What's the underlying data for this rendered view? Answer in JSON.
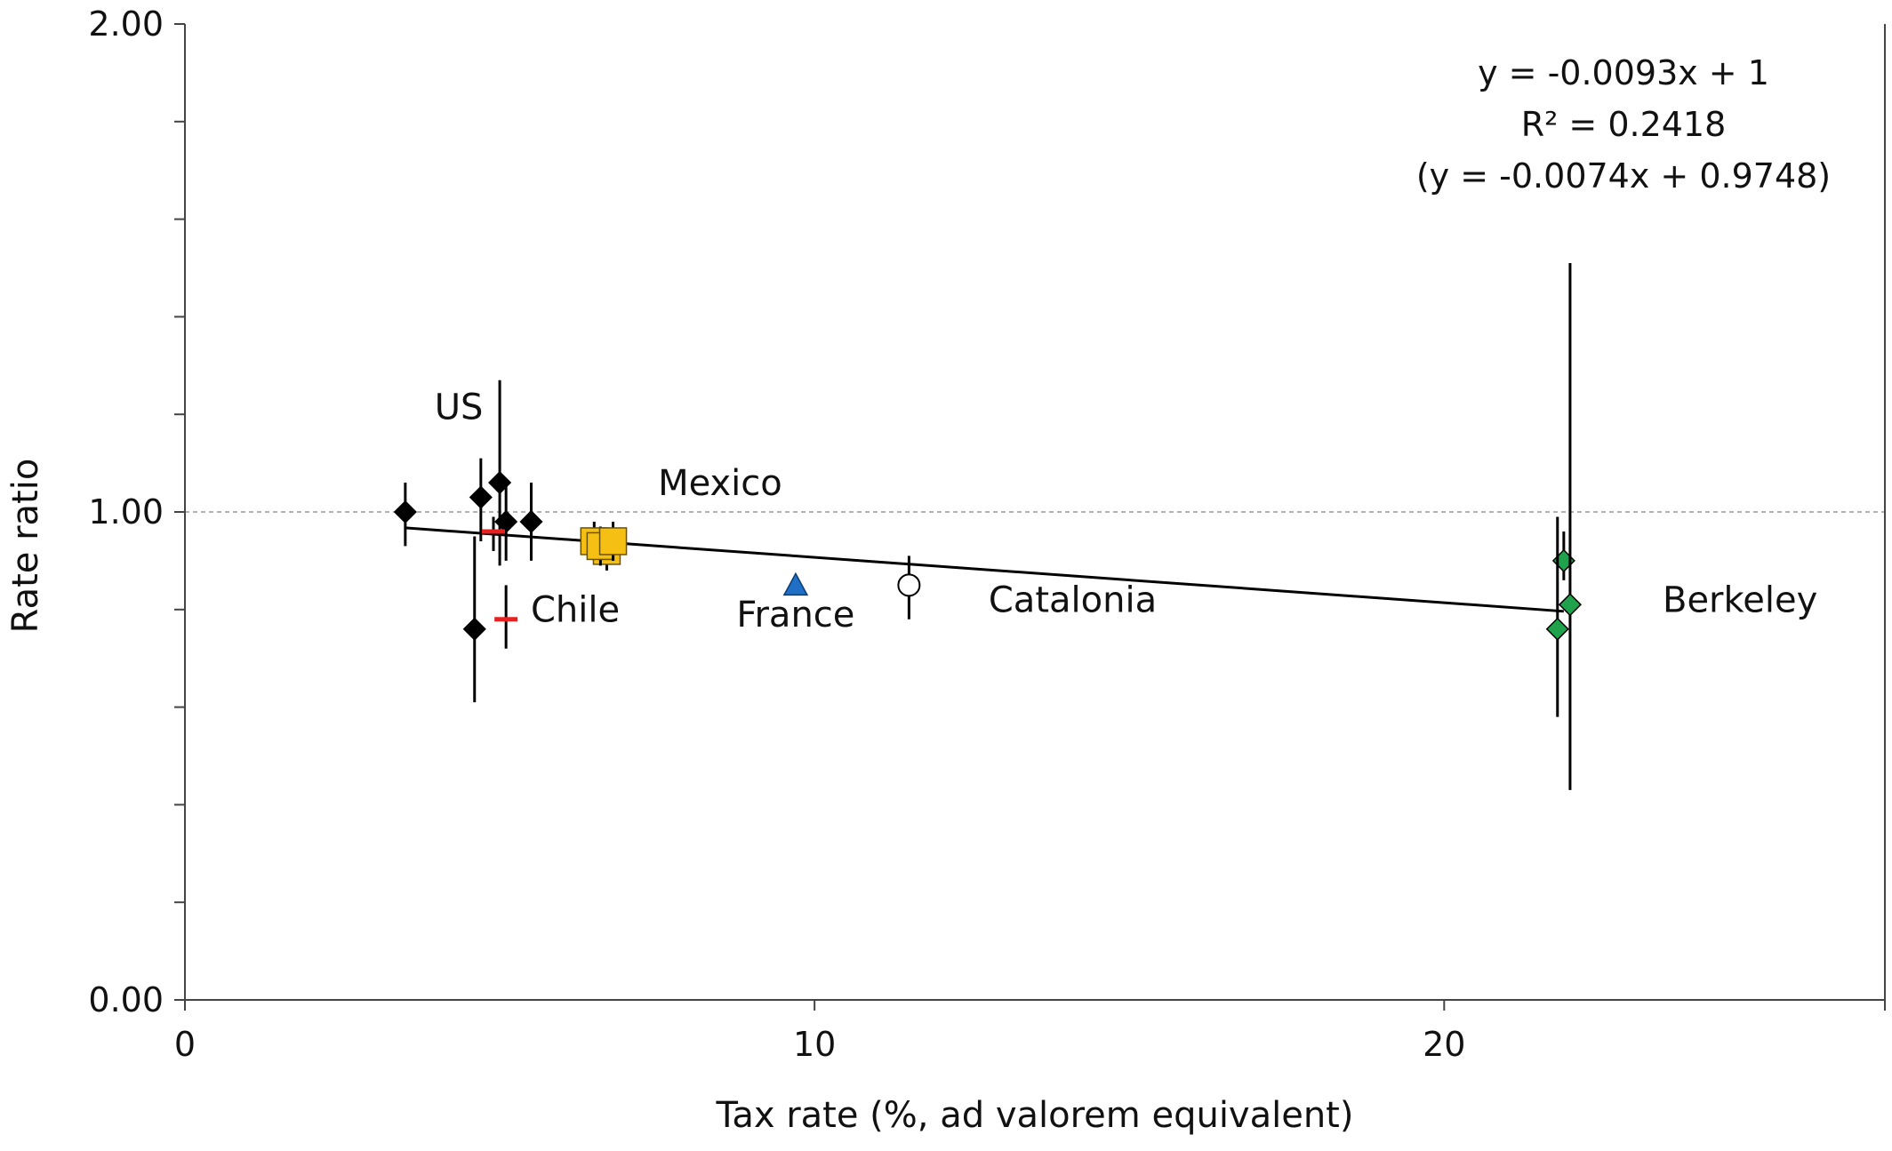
{
  "chart_data": {
    "type": "scatter",
    "xlabel": "Tax rate (%, ad valorem equivalent)",
    "ylabel": "Rate ratio",
    "xlim": [
      0,
      27
    ],
    "ylim": [
      0,
      2
    ],
    "x_ticks": [
      0,
      10,
      20
    ],
    "x_tick_labels": [
      "0",
      "10",
      "20"
    ],
    "y_ticks": [
      0,
      1,
      2
    ],
    "y_tick_labels": [
      "0.00",
      "1.00",
      "2.00"
    ],
    "y_minor_step": 0.2,
    "reference_line": {
      "y": 1.0,
      "style": "dashed",
      "color": "#999999"
    },
    "regression_line": {
      "slope": -0.0093,
      "intercept": 1.0,
      "x_from": 3.5,
      "x_to": 21.9
    },
    "equations": [
      "y = -0.0093x + 1",
      "R² = 0.2418",
      "(y = -0.0074x + 0.9748)"
    ],
    "series": [
      {
        "group": "US",
        "marker": "diamond",
        "color": "#000000",
        "points": [
          {
            "x": 3.5,
            "y": 1.0,
            "lo": 0.93,
            "hi": 1.06
          },
          {
            "x": 4.7,
            "y": 1.03,
            "lo": 0.94,
            "hi": 1.11
          },
          {
            "x": 5.0,
            "y": 1.06,
            "lo": 0.89,
            "hi": 1.27
          },
          {
            "x": 5.1,
            "y": 0.98,
            "lo": 0.9,
            "hi": 1.06
          },
          {
            "x": 5.5,
            "y": 0.98,
            "lo": 0.9,
            "hi": 1.06
          },
          {
            "x": 4.6,
            "y": 0.76,
            "lo": 0.61,
            "hi": 0.95
          }
        ]
      },
      {
        "group": "Chile",
        "marker": "dash",
        "color": "#e8201f",
        "points": [
          {
            "x": 4.9,
            "y": 0.96,
            "lo": 0.92,
            "hi": 0.99
          },
          {
            "x": 5.1,
            "y": 0.78,
            "lo": 0.72,
            "hi": 0.85
          }
        ]
      },
      {
        "group": "Mexico",
        "marker": "square",
        "color": "#f5c013",
        "points": [
          {
            "x": 6.5,
            "y": 0.94,
            "lo": 0.9,
            "hi": 0.98
          },
          {
            "x": 6.7,
            "y": 0.92,
            "lo": 0.88,
            "hi": 0.96
          },
          {
            "x": 6.6,
            "y": 0.93,
            "lo": 0.89,
            "hi": 0.97
          },
          {
            "x": 6.8,
            "y": 0.94,
            "lo": 0.9,
            "hi": 0.98
          }
        ]
      },
      {
        "group": "France",
        "marker": "triangle",
        "color": "#1f6fc4",
        "points": [
          {
            "x": 9.7,
            "y": 0.85
          }
        ]
      },
      {
        "group": "Catalonia",
        "marker": "circle-open",
        "color": "#000000",
        "points": [
          {
            "x": 11.5,
            "y": 0.85,
            "lo": 0.78,
            "hi": 0.91
          }
        ]
      },
      {
        "group": "Berkeley",
        "marker": "diamond",
        "color": "#1fa24b",
        "points": [
          {
            "x": 21.9,
            "y": 0.9,
            "lo": 0.86,
            "hi": 0.96
          },
          {
            "x": 22.0,
            "y": 0.81,
            "lo": 0.43,
            "hi": 1.51
          },
          {
            "x": 21.8,
            "y": 0.76,
            "lo": 0.58,
            "hi": 0.99
          }
        ]
      }
    ],
    "group_labels": [
      {
        "text": "US",
        "x": 4.35,
        "y": 1.19
      },
      {
        "text": "Mexico",
        "x": 8.5,
        "y": 1.035
      },
      {
        "text": "Chile",
        "x": 6.2,
        "y": 0.775
      },
      {
        "text": "France",
        "x": 9.7,
        "y": 0.765
      },
      {
        "text": "Catalonia",
        "x": 14.1,
        "y": 0.795
      },
      {
        "text": "Berkeley",
        "x": 24.7,
        "y": 0.795
      }
    ]
  }
}
